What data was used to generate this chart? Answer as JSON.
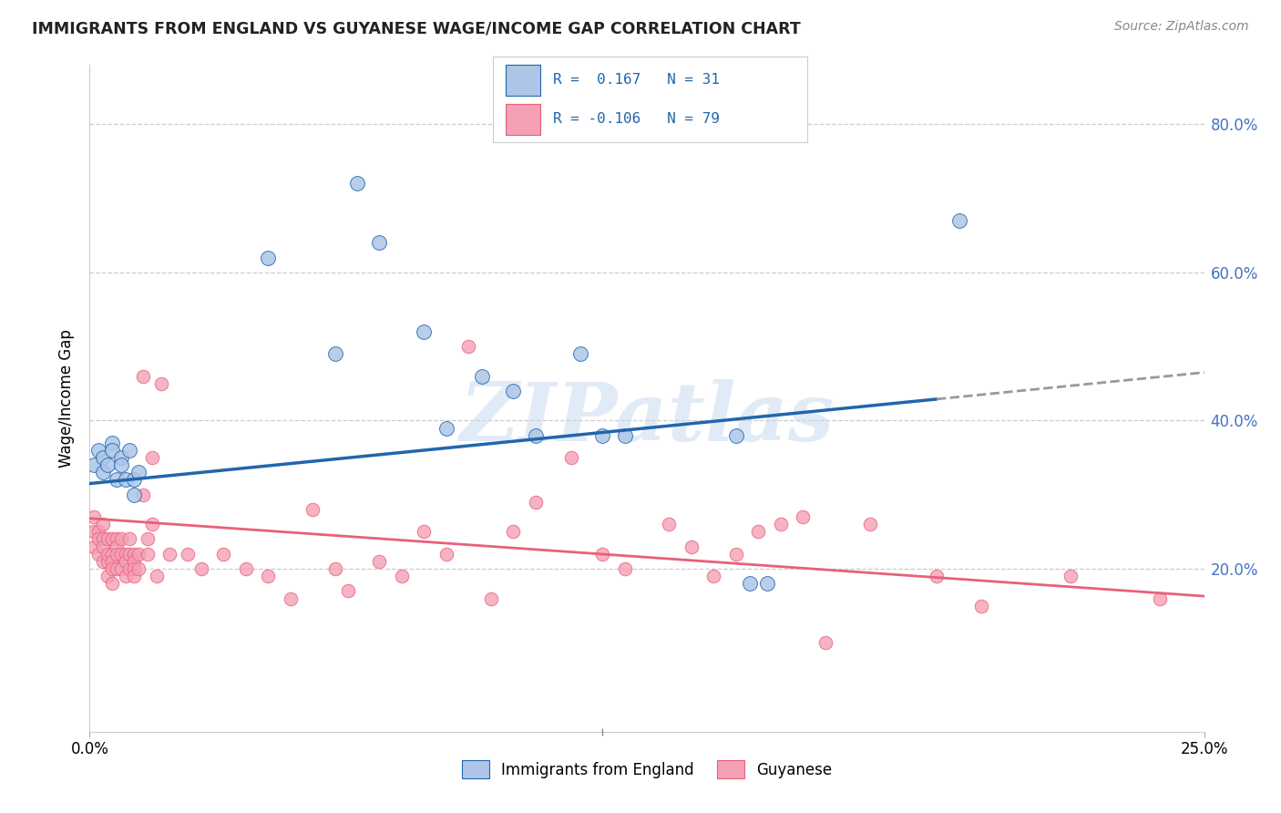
{
  "title": "IMMIGRANTS FROM ENGLAND VS GUYANESE WAGE/INCOME GAP CORRELATION CHART",
  "source": "Source: ZipAtlas.com",
  "ylabel": "Wage/Income Gap",
  "right_ytick_vals": [
    0.2,
    0.4,
    0.6,
    0.8
  ],
  "right_ytick_labels": [
    "20.0%",
    "40.0%",
    "60.0%",
    "80.0%"
  ],
  "color_blue": "#adc6e8",
  "color_pink": "#f4a0b5",
  "line_blue": "#2166ac",
  "line_pink": "#e8607a",
  "watermark_text": "ZIPatlas",
  "xlim": [
    0.0,
    0.25
  ],
  "ylim": [
    -0.02,
    0.88
  ],
  "blue_line_intercept": 0.315,
  "blue_line_slope": 0.6,
  "pink_line_intercept": 0.268,
  "pink_line_slope": -0.42,
  "blue_x": [
    0.001,
    0.002,
    0.003,
    0.003,
    0.004,
    0.005,
    0.005,
    0.006,
    0.007,
    0.007,
    0.008,
    0.009,
    0.01,
    0.01,
    0.011,
    0.04,
    0.055,
    0.06,
    0.065,
    0.075,
    0.08,
    0.088,
    0.095,
    0.1,
    0.11,
    0.115,
    0.12,
    0.145,
    0.148,
    0.152,
    0.195
  ],
  "blue_y": [
    0.34,
    0.36,
    0.33,
    0.35,
    0.34,
    0.37,
    0.36,
    0.32,
    0.35,
    0.34,
    0.32,
    0.36,
    0.32,
    0.3,
    0.33,
    0.62,
    0.49,
    0.72,
    0.64,
    0.52,
    0.39,
    0.46,
    0.44,
    0.38,
    0.49,
    0.38,
    0.38,
    0.38,
    0.18,
    0.18,
    0.67
  ],
  "pink_x": [
    0.001,
    0.001,
    0.001,
    0.002,
    0.002,
    0.002,
    0.003,
    0.003,
    0.003,
    0.003,
    0.004,
    0.004,
    0.004,
    0.004,
    0.005,
    0.005,
    0.005,
    0.005,
    0.005,
    0.006,
    0.006,
    0.006,
    0.006,
    0.007,
    0.007,
    0.007,
    0.008,
    0.008,
    0.008,
    0.009,
    0.009,
    0.009,
    0.01,
    0.01,
    0.01,
    0.01,
    0.011,
    0.011,
    0.012,
    0.012,
    0.013,
    0.013,
    0.014,
    0.014,
    0.015,
    0.016,
    0.018,
    0.022,
    0.025,
    0.03,
    0.035,
    0.04,
    0.045,
    0.05,
    0.055,
    0.058,
    0.065,
    0.07,
    0.075,
    0.08,
    0.085,
    0.09,
    0.095,
    0.1,
    0.108,
    0.115,
    0.12,
    0.13,
    0.135,
    0.14,
    0.145,
    0.15,
    0.155,
    0.16,
    0.165,
    0.175,
    0.19,
    0.2,
    0.22,
    0.24
  ],
  "pink_y": [
    0.27,
    0.25,
    0.23,
    0.25,
    0.24,
    0.22,
    0.26,
    0.24,
    0.23,
    0.21,
    0.24,
    0.21,
    0.22,
    0.19,
    0.24,
    0.22,
    0.21,
    0.2,
    0.18,
    0.24,
    0.23,
    0.22,
    0.2,
    0.24,
    0.22,
    0.2,
    0.22,
    0.21,
    0.19,
    0.24,
    0.22,
    0.2,
    0.22,
    0.21,
    0.2,
    0.19,
    0.22,
    0.2,
    0.46,
    0.3,
    0.24,
    0.22,
    0.35,
    0.26,
    0.19,
    0.45,
    0.22,
    0.22,
    0.2,
    0.22,
    0.2,
    0.19,
    0.16,
    0.28,
    0.2,
    0.17,
    0.21,
    0.19,
    0.25,
    0.22,
    0.5,
    0.16,
    0.25,
    0.29,
    0.35,
    0.22,
    0.2,
    0.26,
    0.23,
    0.19,
    0.22,
    0.25,
    0.26,
    0.27,
    0.1,
    0.26,
    0.19,
    0.15,
    0.19,
    0.16
  ]
}
